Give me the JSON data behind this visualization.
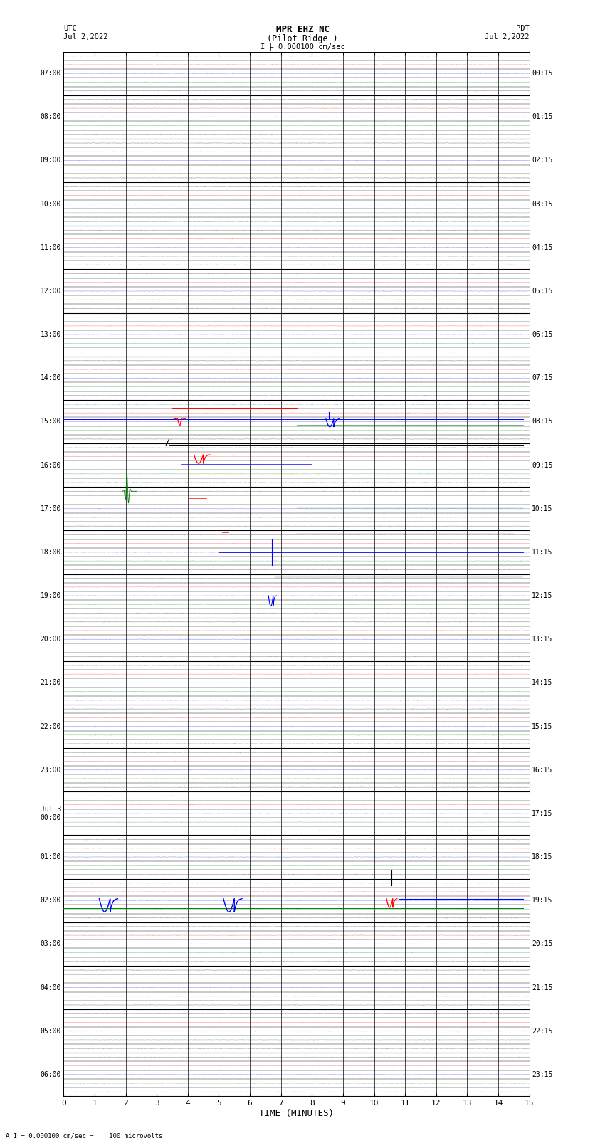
{
  "title_line1": "MPR EHZ NC",
  "title_line2": "(Pilot Ridge )",
  "scale_label": "I = 0.000100 cm/sec",
  "left_label": "UTC",
  "right_label": "PDT",
  "left_date": "Jul 2,2022",
  "right_date": "Jul 2,2022",
  "bottom_label": "TIME (MINUTES)",
  "footnote": "A I = 0.000100 cm/sec =    100 microvolts",
  "utc_times": [
    "07:00",
    "08:00",
    "09:00",
    "10:00",
    "11:00",
    "12:00",
    "13:00",
    "14:00",
    "15:00",
    "16:00",
    "17:00",
    "18:00",
    "19:00",
    "20:00",
    "21:00",
    "22:00",
    "23:00",
    "Jul 3\n00:00",
    "01:00",
    "02:00",
    "03:00",
    "04:00",
    "05:00",
    "06:00"
  ],
  "pdt_times": [
    "00:15",
    "01:15",
    "02:15",
    "03:15",
    "04:15",
    "05:15",
    "06:15",
    "07:15",
    "08:15",
    "09:15",
    "10:15",
    "11:15",
    "12:15",
    "13:15",
    "14:15",
    "15:15",
    "16:15",
    "17:15",
    "18:15",
    "19:15",
    "20:15",
    "21:15",
    "22:15",
    "23:15"
  ],
  "n_rows": 24,
  "sub_rows": 5,
  "x_min": 0,
  "x_max": 15,
  "x_ticks": [
    0,
    1,
    2,
    3,
    4,
    5,
    6,
    7,
    8,
    9,
    10,
    11,
    12,
    13,
    14,
    15
  ],
  "bg_color": "#ffffff",
  "grid_color": "#000000",
  "subgrid_color": "#000000"
}
